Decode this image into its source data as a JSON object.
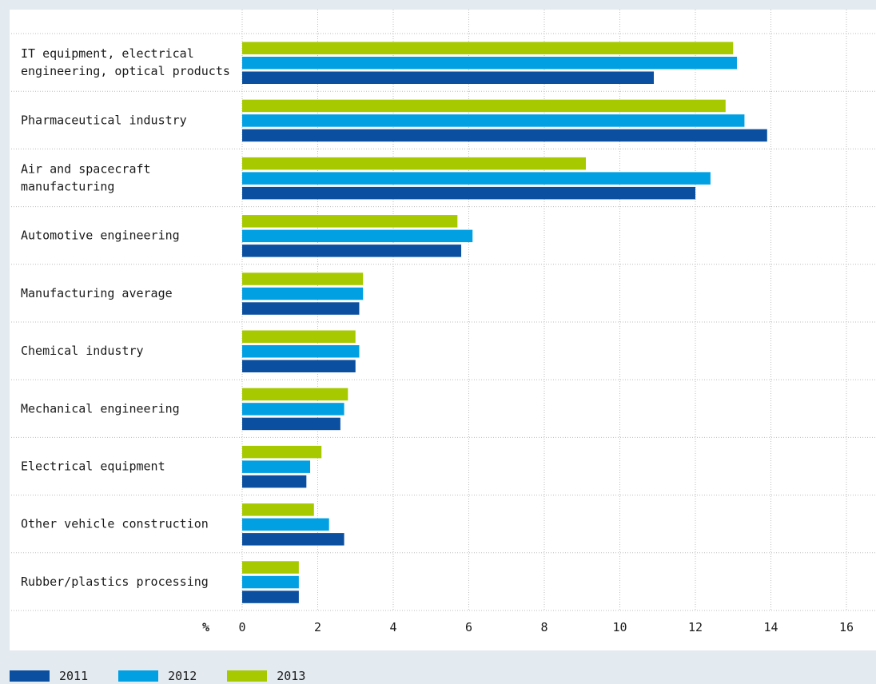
{
  "colors": {
    "2011": "#0a4fa0",
    "2012": "#00a0e3",
    "2013": "#a6c900",
    "grid": "#bdbdbd",
    "background": "#e3eaf0",
    "panel": "#ffffff"
  },
  "chart_data": {
    "type": "bar",
    "orientation": "horizontal",
    "title": "",
    "xlabel": "%",
    "ylabel": "",
    "xlim": [
      0,
      16
    ],
    "x_ticks": [
      "0",
      "2",
      "4",
      "6",
      "8",
      "10",
      "12",
      "14",
      "16"
    ],
    "grid": true,
    "legend_position": "bottom-left",
    "categories": [
      [
        "IT equipment, electrical",
        "engineering, optical products"
      ],
      [
        "Pharmaceutical industry"
      ],
      [
        "Air and spacecraft",
        "manufacturing"
      ],
      [
        "Automotive engineering"
      ],
      [
        "Manufacturing average"
      ],
      [
        "Chemical industry"
      ],
      [
        "Mechanical engineering"
      ],
      [
        "Electrical equipment"
      ],
      [
        "Other vehicle construction"
      ],
      [
        "Rubber/plastics processing"
      ]
    ],
    "series": [
      {
        "name": "2013",
        "color": "#a6c900",
        "values": [
          13.0,
          12.8,
          9.1,
          5.7,
          3.2,
          3.0,
          2.8,
          2.1,
          1.9,
          1.5
        ]
      },
      {
        "name": "2012",
        "color": "#00a0e3",
        "values": [
          13.1,
          13.3,
          12.4,
          6.1,
          3.2,
          3.1,
          2.7,
          1.8,
          2.3,
          1.5
        ]
      },
      {
        "name": "2011",
        "color": "#0a4fa0",
        "values": [
          10.9,
          13.9,
          12.0,
          5.8,
          3.1,
          3.0,
          2.6,
          1.7,
          2.7,
          1.5
        ]
      }
    ]
  },
  "legend": [
    {
      "label": "2011",
      "color": "#0a4fa0"
    },
    {
      "label": "2012",
      "color": "#00a0e3"
    },
    {
      "label": "2013",
      "color": "#a6c900"
    }
  ]
}
